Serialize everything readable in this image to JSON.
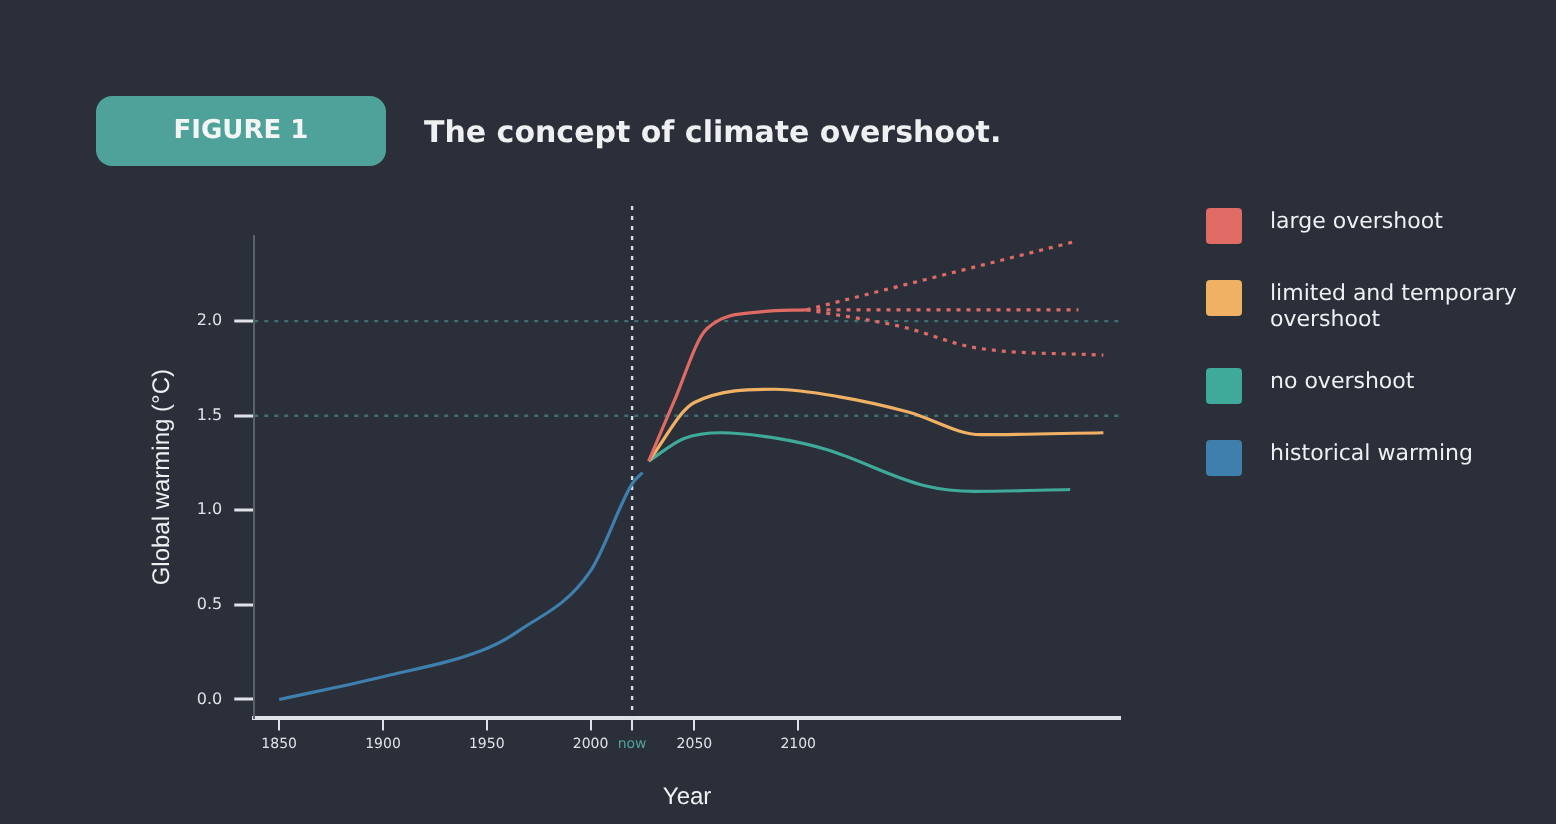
{
  "chart_data": {
    "type": "line",
    "title": "The concept of climate overshoot.",
    "annotations": [
      "FIGURE 1"
    ],
    "xlabel": "Year",
    "ylabel": "Global warming (°C)",
    "xlim": [
      1838,
      2255
    ],
    "xticks": [
      1850,
      1900,
      1950,
      2000,
      {
        "value": 2020,
        "label": "now"
      },
      2050,
      2100
    ],
    "ylim": [
      -0.1,
      2.45
    ],
    "yticks": [
      {
        "value": 0,
        "label": "0.0"
      },
      {
        "value": 0.5,
        "label": "0.5"
      },
      {
        "value": 1,
        "label": "1.0"
      },
      {
        "value": 1.5,
        "label": "1.5"
      },
      {
        "value": 2,
        "label": "2.0"
      }
    ],
    "grid": false,
    "legend": "right",
    "marker": "none",
    "line_style": "solid",
    "ref_lines": [
      {
        "axis": "y",
        "value": 1.5,
        "color": "#3d6f73",
        "line_style": "dotted"
      },
      {
        "axis": "y",
        "value": 2,
        "color": "#3d6f73",
        "line_style": "dotted"
      },
      {
        "axis": "x",
        "value": 2020,
        "color": "#d8dde3",
        "line_style": "dotted"
      }
    ],
    "series": [
      {
        "name": "large overshoot",
        "color": "#e06a64",
        "x": [
          2028,
          2040,
          2056,
          2083,
          2104
        ],
        "values": [
          1.26,
          1.57,
          1.96,
          2.05,
          2.06
        ]
      },
      {
        "color": "#e06a64",
        "line_style": "dotted",
        "x": [
          2104,
          2233
        ],
        "values": [
          2.06,
          2.42
        ]
      },
      {
        "color": "#e06a64",
        "line_style": "dotted",
        "x": [
          2104,
          2235
        ],
        "values": [
          2.06,
          2.06
        ]
      },
      {
        "color": "#e06a64",
        "line_style": "dotted",
        "x": [
          2104,
          2150,
          2185,
          2247
        ],
        "values": [
          2.06,
          1.97,
          1.86,
          1.82
        ]
      },
      {
        "name": "limited and temporary overshoot",
        "color": "#f0b165",
        "x": [
          2028,
          2050,
          2089,
          2120,
          2153,
          2188,
          2247
        ],
        "values": [
          1.26,
          1.57,
          1.64,
          1.6,
          1.52,
          1.4,
          1.41
        ]
      },
      {
        "name": "no overshoot",
        "color": "#3fa99a",
        "x": [
          2028,
          2045,
          2063,
          2090,
          2114,
          2161,
          2185,
          2231
        ],
        "values": [
          1.26,
          1.38,
          1.41,
          1.38,
          1.32,
          1.13,
          1.1,
          1.11
        ]
      },
      {
        "name": "historical warming",
        "color": "#3e7fae",
        "x": [
          1850,
          1900,
          1950,
          1965,
          2000,
          2020,
          2025
        ],
        "values": [
          0,
          0.12,
          0.27,
          0.36,
          0.68,
          1.14,
          1.2
        ]
      }
    ]
  }
}
